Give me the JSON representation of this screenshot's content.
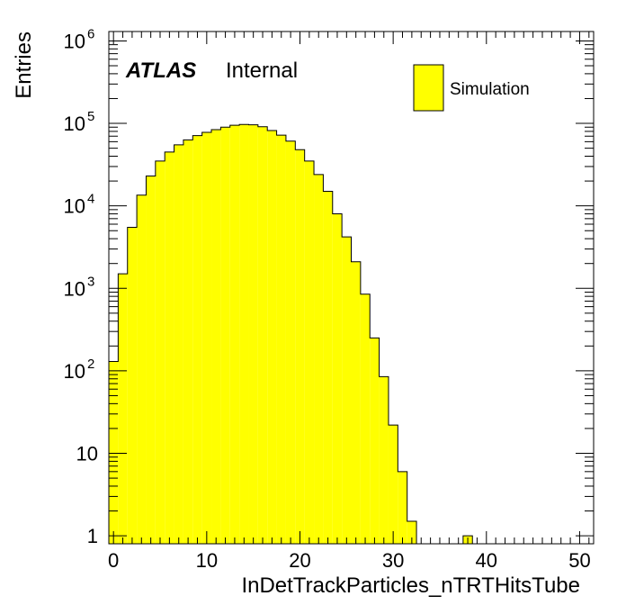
{
  "chart_data": {
    "type": "bar",
    "style": "histogram",
    "xlabel": "InDetTrackParticles_nTRTHitsTube",
    "ylabel": "Entries",
    "xlim": [
      -0.5,
      51.5
    ],
    "ylim": [
      0.8,
      1300000
    ],
    "yscale": "log",
    "fill_color": "#ffff00",
    "edge_color": "#000000",
    "x_ticks": [
      0,
      10,
      20,
      30,
      40,
      50
    ],
    "y_ticks": [
      {
        "value": 1,
        "base": "1",
        "exp": ""
      },
      {
        "value": 10,
        "base": "10",
        "exp": ""
      },
      {
        "value": 100,
        "base": "10",
        "exp": "2"
      },
      {
        "value": 1000,
        "base": "10",
        "exp": "3"
      },
      {
        "value": 10000,
        "base": "10",
        "exp": "4"
      },
      {
        "value": 100000,
        "base": "10",
        "exp": "5"
      },
      {
        "value": 1000000,
        "base": "10",
        "exp": "6"
      }
    ],
    "bin_width": 1,
    "x": [
      0,
      1,
      2,
      3,
      4,
      5,
      6,
      7,
      8,
      9,
      10,
      11,
      12,
      13,
      14,
      15,
      16,
      17,
      18,
      19,
      20,
      21,
      22,
      23,
      24,
      25,
      26,
      27,
      28,
      29,
      30,
      31,
      32,
      33,
      34,
      35,
      36,
      37,
      38
    ],
    "values": [
      130,
      1500,
      5500,
      13500,
      23000,
      35000,
      45000,
      55000,
      63000,
      71000,
      78000,
      84000,
      90000,
      95000,
      97000,
      96000,
      91000,
      82000,
      72000,
      61000,
      48000,
      35000,
      24000,
      15000,
      8000,
      4200,
      2100,
      850,
      250,
      85,
      22,
      6,
      1.5,
      0,
      0,
      0,
      0,
      0,
      1
    ],
    "annotations": {
      "experiment": "ATLAS",
      "status": "Internal"
    },
    "legend": {
      "position": "top-right",
      "entries": [
        {
          "label": "Simulation",
          "color": "#ffff00"
        }
      ]
    },
    "grid": false
  }
}
